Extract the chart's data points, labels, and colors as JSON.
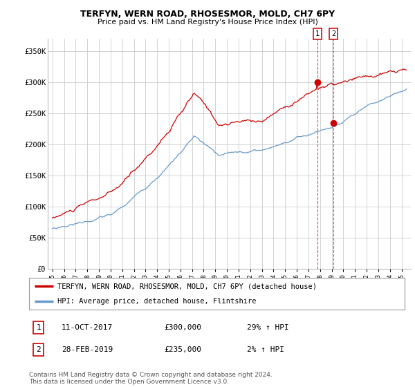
{
  "title": "TERFYN, WERN ROAD, RHOSESMOR, MOLD, CH7 6PY",
  "subtitle": "Price paid vs. HM Land Registry's House Price Index (HPI)",
  "ylabel_ticks": [
    "£0",
    "£50K",
    "£100K",
    "£150K",
    "£200K",
    "£250K",
    "£300K",
    "£350K"
  ],
  "ylabel_values": [
    0,
    50000,
    100000,
    150000,
    200000,
    250000,
    300000,
    350000
  ],
  "ylim": [
    0,
    370000
  ],
  "xlim_start": 1994.6,
  "xlim_end": 2025.8,
  "marker1_x": 2017.78,
  "marker1_y": 300000,
  "marker2_x": 2019.16,
  "marker2_y": 235000,
  "legend_label1": "TERFYN, WERN ROAD, RHOSESMOR, MOLD, CH7 6PY (detached house)",
  "legend_label2": "HPI: Average price, detached house, Flintshire",
  "table_row1_num": "1",
  "table_row1_date": "11-OCT-2017",
  "table_row1_price": "£300,000",
  "table_row1_hpi": "29% ↑ HPI",
  "table_row2_num": "2",
  "table_row2_date": "28-FEB-2019",
  "table_row2_price": "£235,000",
  "table_row2_hpi": "2% ↑ HPI",
  "footer": "Contains HM Land Registry data © Crown copyright and database right 2024.\nThis data is licensed under the Open Government Licence v3.0.",
  "line1_color": "#cc0000",
  "line2_color": "#6699cc",
  "marker_color": "#cc0000",
  "grid_color": "#cccccc",
  "bg_color": "#ffffff"
}
